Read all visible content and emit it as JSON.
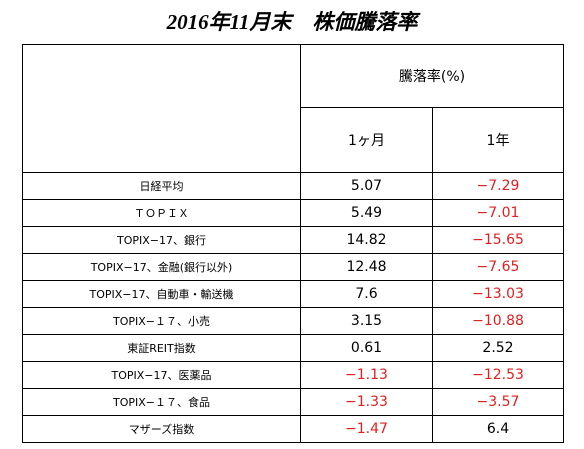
{
  "title": "2016年11月末　株価騰落率",
  "table": {
    "header": "騰落率(%)",
    "columns": [
      "1ヶ月",
      "1年"
    ],
    "rows": [
      [
        "日経平均",
        "5.07",
        "−7.29"
      ],
      [
        "ＴＯＰＩＸ",
        "5.49",
        "−7.01"
      ],
      [
        "TOPIX−17、銀行",
        "14.82",
        "−15.65"
      ],
      [
        "TOPIX−17、金融(銀行以外)",
        "12.48",
        "−7.65"
      ],
      [
        "TOPIX−17、自動車・輸送機",
        "7.6",
        "−13.03"
      ],
      [
        "TOPIX−１７、小売",
        "3.15",
        "−10.88"
      ],
      [
        "東証REIT指数",
        "0.61",
        "2.52"
      ],
      [
        "TOPIX−17、医薬品",
        "−1.13",
        "−12.53"
      ],
      [
        "TOPIX−１７、食品",
        "−1.33",
        "−3.57"
      ],
      [
        "マザーズ指数",
        "−1.47",
        "6.4"
      ]
    ]
  }
}
